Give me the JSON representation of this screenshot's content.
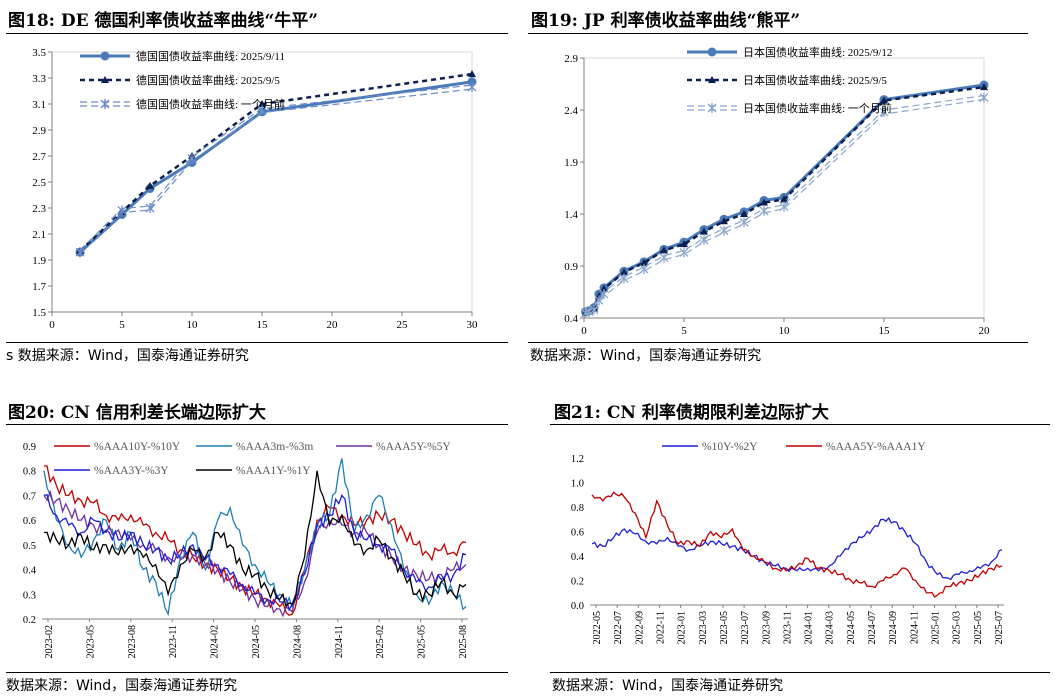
{
  "panels": [
    {
      "title": "图18:  DE 德国利率债收益率曲线“牛平”",
      "source": "s 数据来源：Wind，国泰海通证券研究"
    },
    {
      "title": "图19:  JP 利率债收益率曲线“熊平”",
      "source": "数据来源：Wind，国泰海通证券研究"
    },
    {
      "title": "图20:  CN 信用利差长端边际扩大",
      "source": "数据来源：Wind，国泰海通证券研究"
    },
    {
      "title": "图21:  CN 利率债期限利差边际扩大",
      "source": "数据来源：Wind，国泰海通证券研究"
    }
  ],
  "chart_data": [
    {
      "type": "line",
      "title": "DE 德国利率债收益率曲线“牛平”",
      "x": [
        2,
        5,
        7,
        10,
        15,
        30
      ],
      "xlim": [
        0,
        30
      ],
      "ylim": [
        1.5,
        3.5
      ],
      "xticks": [
        "0",
        "5",
        "10",
        "15",
        "20",
        "25",
        "30"
      ],
      "yticks": [
        "1.5",
        "1.7",
        "1.9",
        "2.1",
        "2.3",
        "2.5",
        "2.7",
        "2.9",
        "3.1",
        "3.3",
        "3.5"
      ],
      "series": [
        {
          "name": "德国国债收益率曲线: 2025/9/11",
          "values": [
            1.96,
            2.25,
            2.45,
            2.65,
            3.04,
            3.27
          ],
          "color": "#4a7ab8"
        },
        {
          "name": "德国国债收益率曲线: 2025/9/5",
          "values": [
            1.97,
            2.27,
            2.47,
            2.7,
            3.1,
            3.33
          ],
          "color": "#0d1f4f"
        },
        {
          "name": "德国国债收益率曲线: 一个月前",
          "values": [
            1.96,
            2.28,
            2.3,
            2.68,
            3.05,
            3.23
          ],
          "color": "#6a8cc8"
        }
      ]
    },
    {
      "type": "line",
      "title": "JP 利率债收益率曲线“熊平”",
      "x": [
        0.08,
        0.25,
        0.5,
        0.75,
        1,
        2,
        3,
        4,
        5,
        6,
        7,
        8,
        9,
        10,
        15,
        20
      ],
      "xlim": [
        0,
        20
      ],
      "ylim": [
        0.4,
        2.9
      ],
      "xticks": [
        "0",
        "5",
        "10",
        "15",
        "20"
      ],
      "yticks": [
        "0.4",
        "0.9",
        "1.4",
        "1.9",
        "2.4",
        "2.9"
      ],
      "series": [
        {
          "name": "日本国债收益率曲线: 2025/9/12",
          "values": [
            0.46,
            0.47,
            0.5,
            0.63,
            0.69,
            0.85,
            0.94,
            1.06,
            1.13,
            1.25,
            1.35,
            1.42,
            1.53,
            1.56,
            2.5,
            2.64
          ],
          "color": "#4a7ab8"
        },
        {
          "name": "日本国债收益率曲线: 2025/9/5",
          "values": [
            0.45,
            0.47,
            0.49,
            0.61,
            0.68,
            0.84,
            0.93,
            1.05,
            1.11,
            1.23,
            1.33,
            1.4,
            1.51,
            1.54,
            2.49,
            2.62
          ],
          "color": "#0d1f4f"
        },
        {
          "name": "日本国债收益率曲线: 一个月前",
          "values": [
            0.45,
            0.46,
            0.48,
            0.57,
            0.63,
            0.78,
            0.87,
            0.98,
            1.03,
            1.15,
            1.24,
            1.32,
            1.43,
            1.47,
            2.38,
            2.52
          ],
          "color": "#8aa6cc"
        }
      ]
    },
    {
      "type": "line",
      "title": "CN 信用利差长端边际扩大",
      "xlabels": [
        "2023-02",
        "2023-05",
        "2023-08",
        "2023-11",
        "2024-02",
        "2024-05",
        "2024-08",
        "2024-11",
        "2025-02",
        "2025-05",
        "2025-08"
      ],
      "ylim": [
        0.2,
        0.9
      ],
      "yticks": [
        "0.2",
        "0.3",
        "0.4",
        "0.5",
        "0.6",
        "0.7",
        "0.8",
        "0.9"
      ],
      "series": [
        {
          "name": "%AAA10Y-%10Y",
          "color": "#c00000",
          "values": [
            0.82,
            0.74,
            0.7,
            0.68,
            0.67,
            0.62,
            0.6,
            0.62,
            0.58,
            0.55,
            0.52,
            0.48,
            0.45,
            0.42,
            0.4,
            0.36,
            0.33,
            0.3,
            0.28,
            0.25,
            0.22,
            0.4,
            0.6,
            0.65,
            0.62,
            0.58,
            0.6,
            0.62,
            0.6,
            0.55,
            0.5,
            0.46,
            0.48,
            0.47,
            0.51
          ]
        },
        {
          "name": "%AAA3m-%3m",
          "color": "#1f7fb4",
          "values": [
            0.8,
            0.6,
            0.5,
            0.45,
            0.52,
            0.6,
            0.48,
            0.55,
            0.4,
            0.35,
            0.22,
            0.45,
            0.55,
            0.4,
            0.6,
            0.65,
            0.5,
            0.42,
            0.35,
            0.3,
            0.25,
            0.4,
            0.58,
            0.62,
            0.85,
            0.55,
            0.62,
            0.7,
            0.58,
            0.4,
            0.3,
            0.26,
            0.35,
            0.3,
            0.25
          ]
        },
        {
          "name": "%AAA5Y-%5Y",
          "color": "#7030a0",
          "values": [
            0.7,
            0.68,
            0.64,
            0.6,
            0.58,
            0.55,
            0.56,
            0.52,
            0.5,
            0.48,
            0.45,
            0.44,
            0.46,
            0.42,
            0.4,
            0.35,
            0.32,
            0.28,
            0.25,
            0.24,
            0.23,
            0.35,
            0.55,
            0.6,
            0.58,
            0.55,
            0.55,
            0.5,
            0.45,
            0.4,
            0.38,
            0.36,
            0.38,
            0.4,
            0.42
          ]
        },
        {
          "name": "%AAA3Y-%3Y",
          "color": "#1f1fd1",
          "values": [
            0.7,
            0.62,
            0.58,
            0.55,
            0.6,
            0.56,
            0.52,
            0.55,
            0.5,
            0.48,
            0.44,
            0.46,
            0.5,
            0.44,
            0.42,
            0.38,
            0.34,
            0.3,
            0.28,
            0.27,
            0.26,
            0.38,
            0.58,
            0.62,
            0.7,
            0.55,
            0.52,
            0.5,
            0.48,
            0.4,
            0.35,
            0.33,
            0.36,
            0.38,
            0.46
          ]
        },
        {
          "name": "%AAA1Y-%1Y",
          "color": "#000000",
          "values": [
            0.55,
            0.52,
            0.5,
            0.54,
            0.48,
            0.5,
            0.46,
            0.5,
            0.45,
            0.42,
            0.3,
            0.42,
            0.48,
            0.45,
            0.55,
            0.5,
            0.4,
            0.38,
            0.32,
            0.28,
            0.26,
            0.45,
            0.8,
            0.58,
            0.62,
            0.5,
            0.48,
            0.52,
            0.45,
            0.38,
            0.3,
            0.3,
            0.35,
            0.3,
            0.34
          ]
        }
      ]
    },
    {
      "type": "line",
      "title": "CN 利率债期限利差边际扩大",
      "xlabels": [
        "2022-05",
        "2022-07",
        "2022-09",
        "2022-11",
        "2023-01",
        "2023-03",
        "2023-05",
        "2023-07",
        "2023-09",
        "2023-11",
        "2024-01",
        "2024-03",
        "2024-05",
        "2024-07",
        "2024-09",
        "2024-11",
        "2025-01",
        "2025-03",
        "2025-05",
        "2025-07"
      ],
      "ylim": [
        0.0,
        1.2
      ],
      "yticks": [
        "0.0",
        "0.2",
        "0.4",
        "0.6",
        "0.8",
        "1.0",
        "1.2"
      ],
      "series": [
        {
          "name": "%10Y-%2Y",
          "color": "#1f1fd1",
          "values": [
            0.5,
            0.48,
            0.55,
            0.62,
            0.58,
            0.52,
            0.5,
            0.55,
            0.48,
            0.45,
            0.48,
            0.52,
            0.5,
            0.48,
            0.45,
            0.4,
            0.35,
            0.32,
            0.3,
            0.28,
            0.3,
            0.28,
            0.32,
            0.4,
            0.5,
            0.55,
            0.62,
            0.7,
            0.68,
            0.6,
            0.5,
            0.35,
            0.25,
            0.22,
            0.25,
            0.28,
            0.3,
            0.35,
            0.45
          ]
        },
        {
          "name": "%AAA5Y-%AAA1Y",
          "color": "#c00000",
          "values": [
            0.9,
            0.85,
            0.92,
            0.88,
            0.75,
            0.55,
            0.85,
            0.65,
            0.5,
            0.52,
            0.48,
            0.6,
            0.55,
            0.62,
            0.45,
            0.4,
            0.35,
            0.3,
            0.28,
            0.32,
            0.38,
            0.3,
            0.28,
            0.25,
            0.2,
            0.18,
            0.15,
            0.2,
            0.25,
            0.3,
            0.2,
            0.1,
            0.08,
            0.15,
            0.18,
            0.2,
            0.25,
            0.3,
            0.32
          ]
        }
      ]
    }
  ]
}
